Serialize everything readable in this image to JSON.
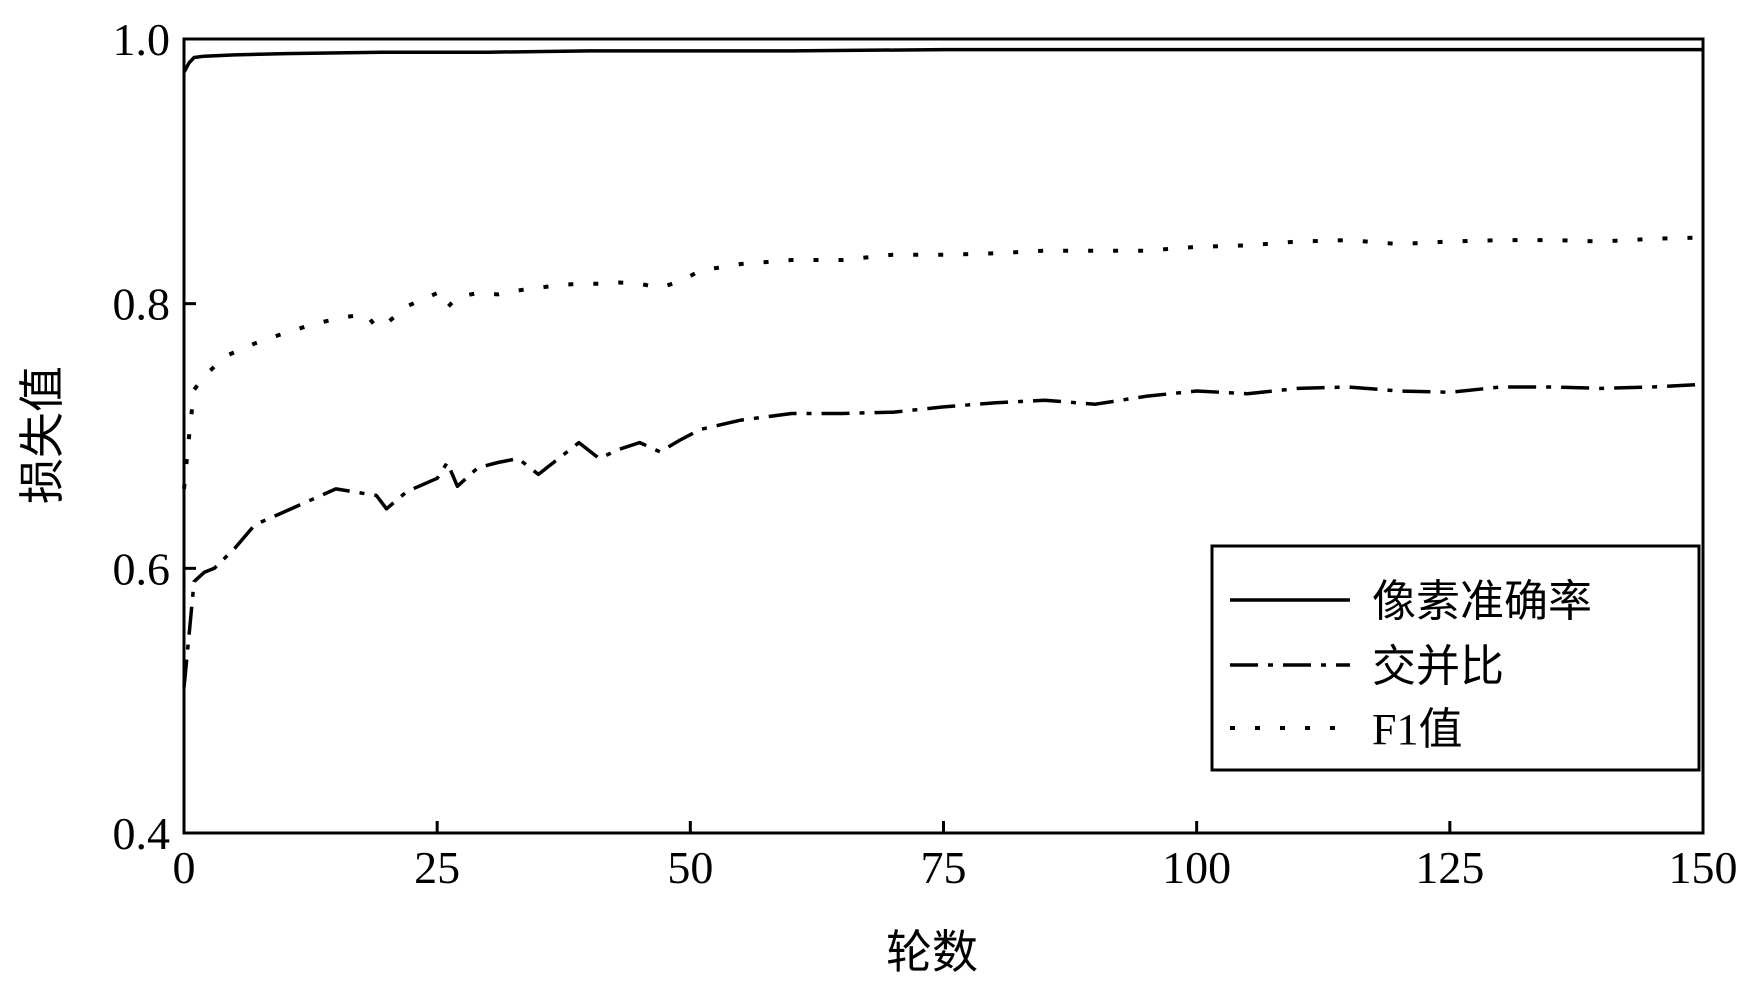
{
  "chart_data": {
    "type": "line",
    "title": "",
    "xlabel": "轮数",
    "ylabel": "损失值",
    "xlim": [
      0,
      150
    ],
    "ylim": [
      0.4,
      1.0
    ],
    "xticks": [
      "0",
      "25",
      "50",
      "75",
      "100",
      "125",
      "150"
    ],
    "yticks": [
      "0.4",
      "0.6",
      "0.8",
      "1.0"
    ],
    "grid": false,
    "legend_position": "bottom-right",
    "series": [
      {
        "name": "像素准确率",
        "style": "solid",
        "x": [
          0,
          0.5,
          1,
          2,
          5,
          10,
          20,
          30,
          40,
          50,
          60,
          75,
          100,
          125,
          150
        ],
        "y": [
          0.975,
          0.982,
          0.986,
          0.987,
          0.988,
          0.989,
          0.99,
          0.99,
          0.991,
          0.991,
          0.991,
          0.992,
          0.992,
          0.992,
          0.992
        ]
      },
      {
        "name": "交并比",
        "style": "dashdot",
        "x": [
          0,
          0.5,
          1,
          2,
          3,
          5,
          7,
          10,
          15,
          19,
          20,
          22,
          25,
          26,
          27,
          29,
          31,
          33,
          35,
          37,
          39,
          41,
          43,
          45,
          47,
          49,
          51,
          55,
          60,
          65,
          70,
          75,
          80,
          85,
          90,
          95,
          100,
          105,
          110,
          115,
          120,
          125,
          130,
          135,
          140,
          145,
          150
        ],
        "y": [
          0.51,
          0.55,
          0.59,
          0.597,
          0.6,
          0.615,
          0.633,
          0.643,
          0.66,
          0.655,
          0.645,
          0.658,
          0.668,
          0.68,
          0.662,
          0.676,
          0.68,
          0.683,
          0.671,
          0.683,
          0.695,
          0.683,
          0.69,
          0.695,
          0.688,
          0.697,
          0.705,
          0.712,
          0.717,
          0.717,
          0.718,
          0.722,
          0.725,
          0.727,
          0.724,
          0.73,
          0.734,
          0.732,
          0.736,
          0.737,
          0.734,
          0.733,
          0.737,
          0.737,
          0.736,
          0.737,
          0.739
        ]
      },
      {
        "name": "F1值",
        "style": "dotted",
        "x": [
          0,
          0.5,
          1,
          2,
          4,
          7,
          10,
          13,
          16,
          18,
          19,
          20,
          22,
          25,
          26,
          27,
          29,
          31,
          33,
          35,
          37,
          39,
          41,
          43,
          45,
          47,
          49,
          51,
          55,
          60,
          65,
          70,
          75,
          80,
          85,
          90,
          95,
          100,
          105,
          110,
          115,
          120,
          125,
          130,
          135,
          140,
          145,
          150
        ],
        "y": [
          0.66,
          0.7,
          0.735,
          0.745,
          0.76,
          0.77,
          0.778,
          0.785,
          0.79,
          0.792,
          0.782,
          0.785,
          0.798,
          0.808,
          0.797,
          0.805,
          0.808,
          0.807,
          0.81,
          0.812,
          0.814,
          0.815,
          0.815,
          0.816,
          0.815,
          0.812,
          0.817,
          0.825,
          0.83,
          0.833,
          0.833,
          0.837,
          0.837,
          0.838,
          0.84,
          0.84,
          0.84,
          0.843,
          0.844,
          0.847,
          0.848,
          0.845,
          0.847,
          0.848,
          0.848,
          0.847,
          0.849,
          0.85
        ]
      }
    ]
  }
}
